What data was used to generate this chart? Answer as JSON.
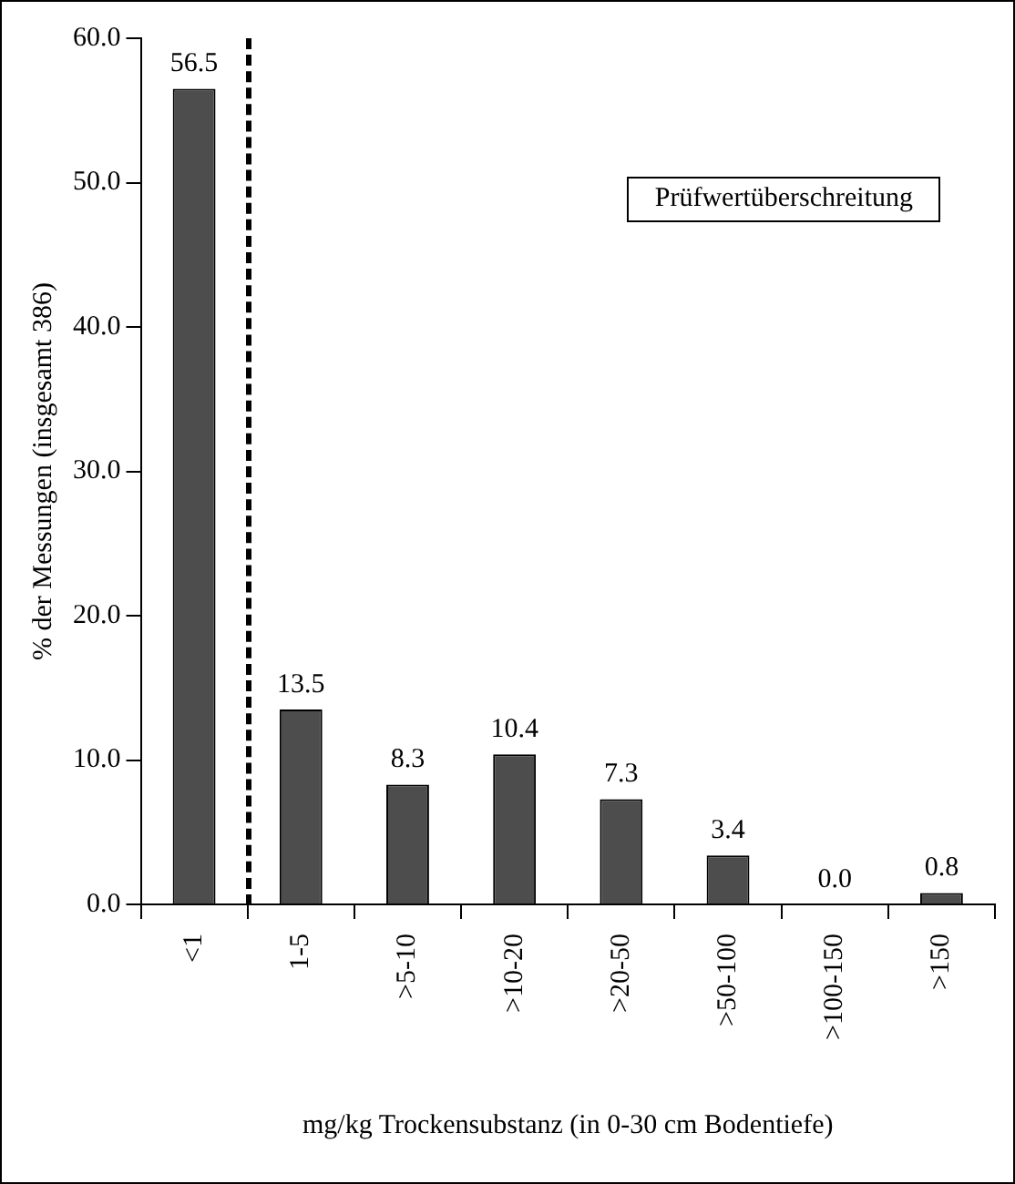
{
  "chart_data": {
    "type": "bar",
    "xlabel": "mg/kg Trockensubstanz (in 0-30 cm Bodentiefe)",
    "ylabel": "% der Messungen (insgesamt 386)",
    "categories": [
      "<1",
      "1-5",
      ">5-10",
      ">10-20",
      ">20-50",
      ">50-100",
      ">100-150",
      ">150"
    ],
    "values": [
      56.5,
      13.5,
      8.3,
      10.4,
      7.3,
      3.4,
      0.0,
      0.8
    ],
    "color": "#4d4d4d",
    "value_labels": [
      "56.5",
      "13.5",
      "8.3",
      "10.4",
      "7.3",
      "3.4",
      "0.0",
      "0.8"
    ],
    "ylim": [
      0,
      60
    ],
    "yticks": [
      {
        "value": 0,
        "label": "0.0"
      },
      {
        "value": 10,
        "label": "10.0"
      },
      {
        "value": 20,
        "label": "20.0"
      },
      {
        "value": 30,
        "label": "30.0"
      },
      {
        "value": 40,
        "label": "40.0"
      },
      {
        "value": 50,
        "label": "50.0"
      },
      {
        "value": 60,
        "label": "60.0"
      }
    ],
    "grid": false,
    "annotations": [
      "Prüfwertüberschreitung"
    ]
  }
}
